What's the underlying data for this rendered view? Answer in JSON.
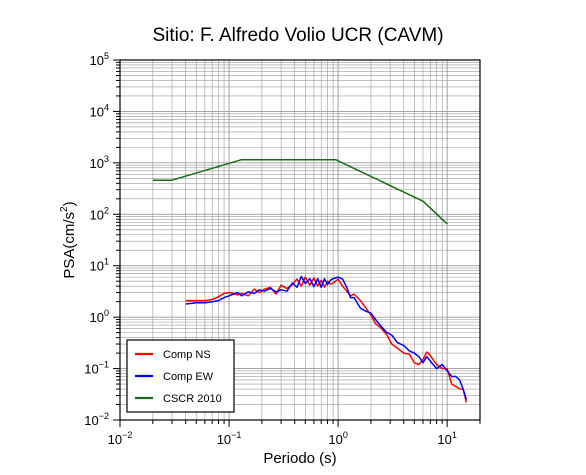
{
  "chart_data": {
    "type": "line",
    "title": "Sitio: F. Alfredo Volio UCR (CAVM)",
    "xlabel": "Periodo (s)",
    "ylabel": {
      "base": "PSA(cm/s",
      "sup": "2",
      "tail": ")"
    },
    "x_scale": "log",
    "y_scale": "log",
    "xlim": [
      0.01,
      20
    ],
    "ylim": [
      0.01,
      100000
    ],
    "x_ticks": [
      {
        "base": "10",
        "exp": "−2",
        "value": 0.01
      },
      {
        "base": "10",
        "exp": "−1",
        "value": 0.1
      },
      {
        "base": "10",
        "exp": "0",
        "value": 1
      },
      {
        "base": "10",
        "exp": "1",
        "value": 10
      }
    ],
    "y_ticks": [
      {
        "base": "10",
        "exp": "−2",
        "value": 0.01
      },
      {
        "base": "10",
        "exp": "−1",
        "value": 0.1
      },
      {
        "base": "10",
        "exp": "0",
        "value": 1
      },
      {
        "base": "10",
        "exp": "1",
        "value": 10
      },
      {
        "base": "10",
        "exp": "2",
        "value": 100
      },
      {
        "base": "10",
        "exp": "3",
        "value": 1000
      },
      {
        "base": "10",
        "exp": "4",
        "value": 10000
      },
      {
        "base": "10",
        "exp": "5",
        "value": 100000
      }
    ],
    "grid": true,
    "legend_position": "bottom-left",
    "series": [
      {
        "name": "Comp NS",
        "color": "#ff0000",
        "x": [
          0.04,
          0.045,
          0.05,
          0.06,
          0.07,
          0.08,
          0.09,
          0.1,
          0.11,
          0.12,
          0.13,
          0.15,
          0.17,
          0.19,
          0.21,
          0.24,
          0.27,
          0.3,
          0.34,
          0.38,
          0.42,
          0.46,
          0.5,
          0.55,
          0.6,
          0.65,
          0.7,
          0.75,
          0.8,
          0.85,
          0.9,
          1.0,
          1.1,
          1.2,
          1.3,
          1.4,
          1.6,
          1.8,
          2.0,
          2.2,
          2.5,
          2.8,
          3.1,
          3.5,
          4.0,
          4.5,
          5.0,
          5.5,
          6.0,
          6.5,
          7.0,
          8.0,
          9.0,
          10.0,
          11.0,
          12.0,
          13.0,
          14.0,
          15.0
        ],
        "y": [
          2.1,
          2.1,
          2.1,
          2.1,
          2.2,
          2.5,
          2.9,
          3.0,
          2.9,
          2.7,
          2.9,
          2.6,
          3.5,
          3.0,
          3.5,
          3.8,
          2.8,
          4.2,
          3.6,
          4.3,
          5.5,
          4.0,
          6.0,
          4.2,
          5.8,
          4.0,
          5.2,
          3.8,
          5.0,
          4.4,
          4.6,
          5.5,
          4.0,
          3.2,
          2.6,
          2.8,
          2.1,
          1.5,
          1.1,
          0.75,
          0.6,
          0.45,
          0.3,
          0.25,
          0.2,
          0.19,
          0.13,
          0.12,
          0.15,
          0.21,
          0.18,
          0.12,
          0.1,
          0.1,
          0.05,
          0.045,
          0.04,
          0.04,
          0.022
        ]
      },
      {
        "name": "Comp EW",
        "color": "#0000ff",
        "x": [
          0.04,
          0.045,
          0.05,
          0.06,
          0.07,
          0.08,
          0.09,
          0.1,
          0.11,
          0.12,
          0.13,
          0.15,
          0.17,
          0.19,
          0.21,
          0.24,
          0.27,
          0.3,
          0.34,
          0.38,
          0.42,
          0.46,
          0.5,
          0.55,
          0.6,
          0.65,
          0.7,
          0.75,
          0.8,
          0.85,
          0.9,
          1.0,
          1.1,
          1.2,
          1.3,
          1.4,
          1.6,
          1.8,
          2.0,
          2.2,
          2.5,
          2.8,
          3.1,
          3.5,
          4.0,
          4.5,
          5.0,
          5.5,
          6.0,
          6.5,
          7.0,
          8.0,
          9.0,
          10.0,
          11.0,
          12.0,
          13.0,
          14.0,
          15.0
        ],
        "y": [
          1.8,
          1.85,
          1.9,
          1.9,
          2.0,
          2.1,
          2.4,
          2.6,
          2.8,
          3.0,
          2.6,
          3.1,
          2.9,
          3.4,
          3.2,
          3.6,
          3.1,
          3.4,
          3.2,
          4.6,
          3.8,
          6.2,
          4.5,
          5.6,
          3.9,
          5.6,
          3.8,
          5.6,
          4.3,
          5.2,
          5.6,
          6.0,
          5.5,
          3.8,
          2.4,
          2.4,
          1.5,
          1.3,
          1.2,
          0.9,
          0.65,
          0.5,
          0.45,
          0.32,
          0.28,
          0.22,
          0.2,
          0.17,
          0.13,
          0.17,
          0.14,
          0.1,
          0.12,
          0.09,
          0.07,
          0.07,
          0.06,
          0.04,
          0.025
        ]
      },
      {
        "name": "CSCR 2010",
        "color": "#1a6b1a",
        "x": [
          0.02,
          0.03,
          0.13,
          0.95,
          6.0,
          10.0
        ],
        "y": [
          460,
          460,
          1150,
          1150,
          180,
          65
        ]
      }
    ]
  }
}
